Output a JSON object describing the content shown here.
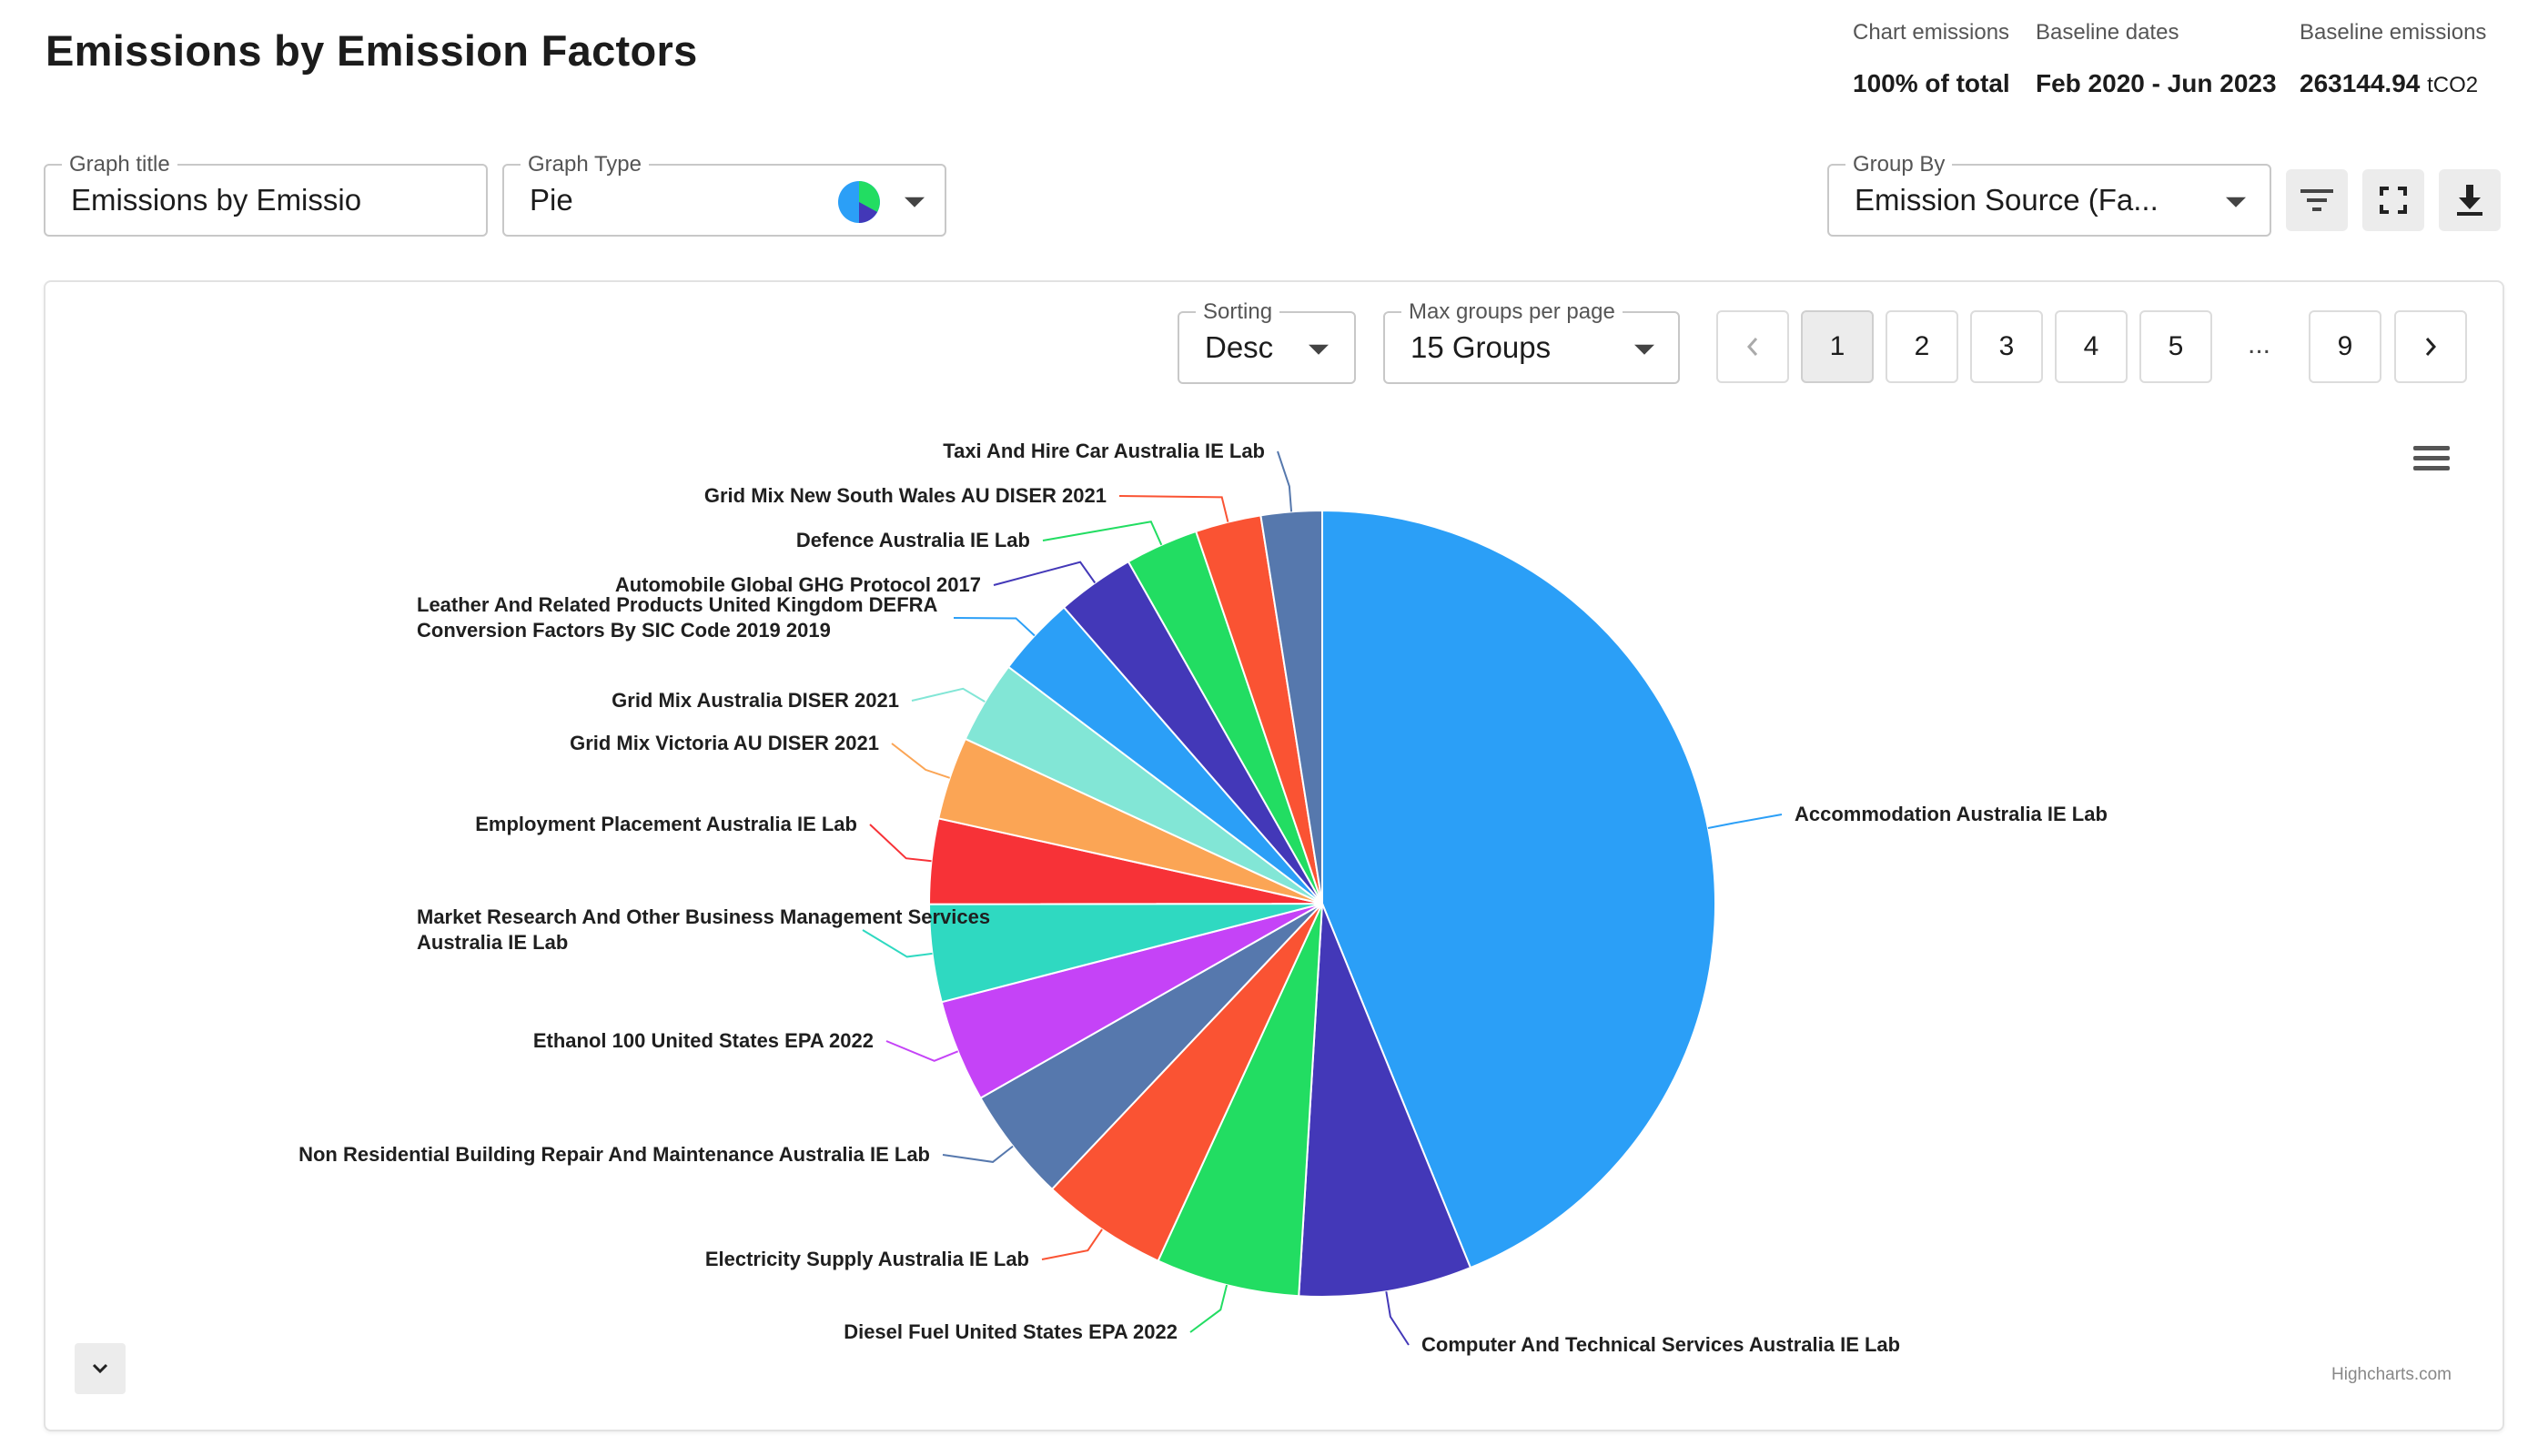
{
  "page": {
    "title": "Emissions by Emission Factors"
  },
  "summary": {
    "chart_emissions": {
      "label": "Chart emissions",
      "value": "100% of total"
    },
    "baseline_dates": {
      "label": "Baseline dates",
      "value": "Feb 2020 - Jun 2023"
    },
    "baseline_emissions": {
      "label": "Baseline emissions",
      "value": "263144.94",
      "unit": "tCO2"
    }
  },
  "controls": {
    "graph_title": {
      "label": "Graph title",
      "value": "Emissions by Emissio"
    },
    "graph_type": {
      "label": "Graph Type",
      "value": "Pie"
    },
    "group_by": {
      "label": "Group By",
      "value": "Emission Source (Fa..."
    },
    "sorting": {
      "label": "Sorting",
      "value": "Desc"
    },
    "max_groups": {
      "label": "Max groups per page",
      "value": "15 Groups"
    }
  },
  "toolbar_icons": [
    "filter-icon",
    "fullscreen-icon",
    "download-icon"
  ],
  "pagination": {
    "pages": [
      "1",
      "2",
      "3",
      "4",
      "5"
    ],
    "ellipsis": "...",
    "last": "9",
    "current": "1"
  },
  "credits": "Highcharts.com",
  "chart_data": {
    "type": "pie",
    "start_angle_deg": 0,
    "direction": "clockwise",
    "series": [
      {
        "name": "Accommodation Australia IE Lab",
        "value": 43.8,
        "color": "#2b9ff7"
      },
      {
        "name": "Computer And Technical Services Australia IE Lab",
        "value": 7.1,
        "color": "#4338b8"
      },
      {
        "name": "Diesel Fuel United States EPA 2022",
        "value": 5.9,
        "color": "#22dd62"
      },
      {
        "name": "Electricity Supply Australia IE Lab",
        "value": 5.2,
        "color": "#fa5333"
      },
      {
        "name": "Non Residential Building Repair And Maintenance Australia IE Lab",
        "value": 4.7,
        "color": "#5678ad"
      },
      {
        "name": "Ethanol 100 United States EPA 2022",
        "value": 4.2,
        "color": "#c543f7"
      },
      {
        "name": "Market Research And Other Business Management Services Australia IE Lab",
        "value": 4.0,
        "color": "#2fd9c1"
      },
      {
        "name": "Employment Placement Australia IE Lab",
        "value": 3.5,
        "color": "#f73237"
      },
      {
        "name": "Grid Mix Victoria AU DISER 2021",
        "value": 3.4,
        "color": "#fba555"
      },
      {
        "name": "Grid Mix Australia DISER 2021",
        "value": 3.4,
        "color": "#82e6d6"
      },
      {
        "name": "Leather And Related Products United Kingdom DEFRA Conversion Factors By SIC Code 2019 2019",
        "value": 3.3,
        "color": "#2b9ff7"
      },
      {
        "name": "Automobile Global GHG Protocol 2017",
        "value": 3.2,
        "color": "#4338b8"
      },
      {
        "name": "Defence Australia IE Lab",
        "value": 3.0,
        "color": "#22dd62"
      },
      {
        "name": "Grid Mix New South Wales AU DISER 2021",
        "value": 2.7,
        "color": "#fa5333"
      },
      {
        "name": "Taxi And Hire Car Australia IE Lab",
        "value": 2.5,
        "color": "#5678ad"
      }
    ]
  }
}
